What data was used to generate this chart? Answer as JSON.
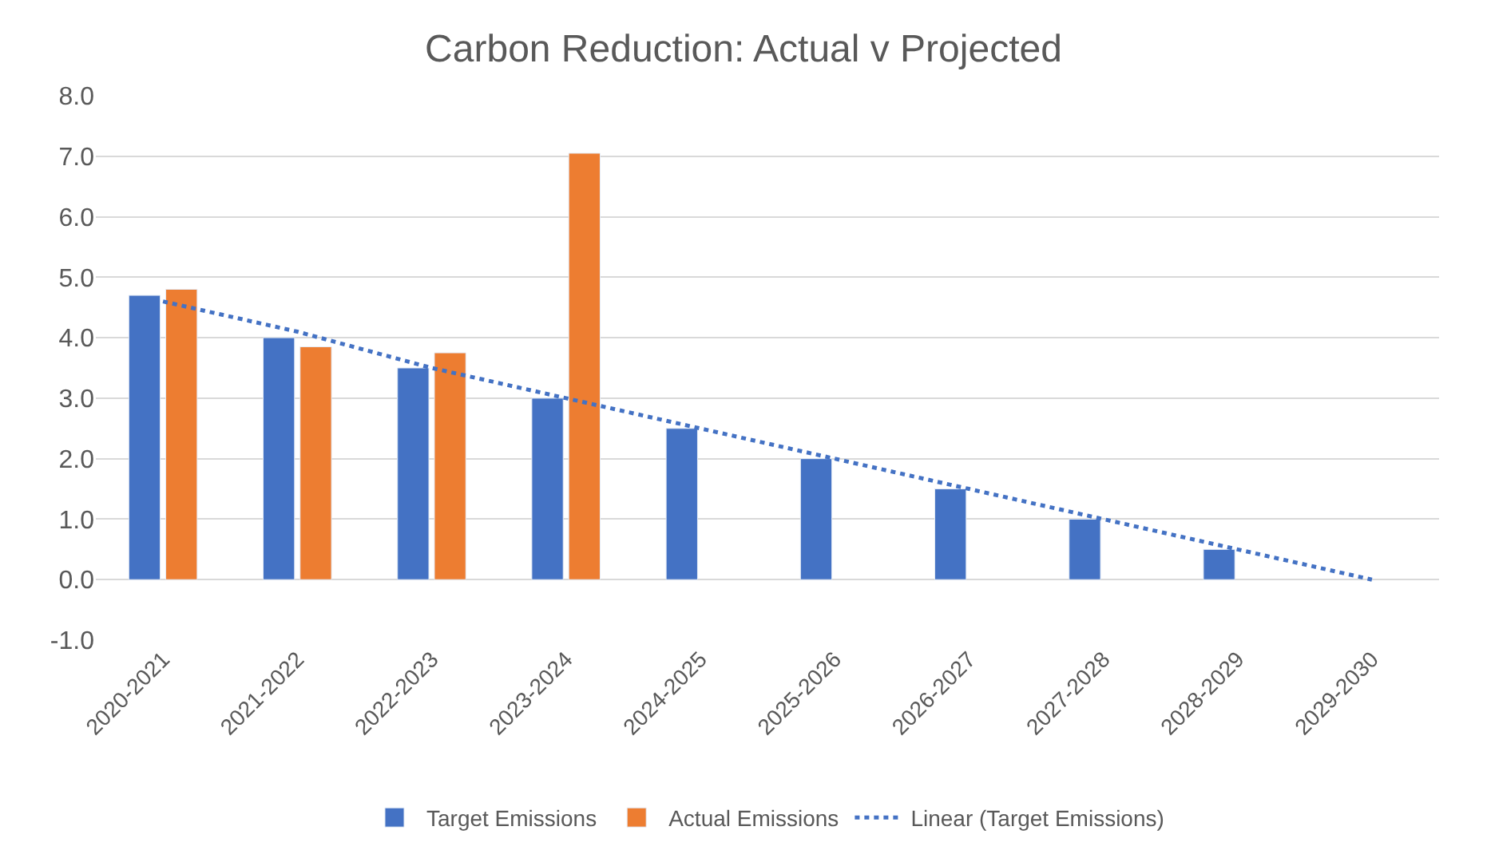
{
  "chart_data": {
    "type": "bar",
    "title": "Carbon Reduction: Actual v Projected",
    "categories": [
      "2020-2021",
      "2021-2022",
      "2022-2023",
      "2023-2024",
      "2024-2025",
      "2025-2026",
      "2026-2027",
      "2027-2028",
      "2028-2029",
      "2029-2030"
    ],
    "series": [
      {
        "name": "Target Emissions",
        "color": "#4472c4",
        "values": [
          4.7,
          4.0,
          3.5,
          3.0,
          2.5,
          2.0,
          1.5,
          1.0,
          0.5,
          null
        ]
      },
      {
        "name": "Actual Emissions",
        "color": "#ed7d31",
        "values": [
          4.8,
          3.85,
          3.75,
          7.05,
          null,
          null,
          null,
          null,
          null,
          null
        ]
      },
      {
        "name": "Linear (Target Emissions)",
        "color": "#4472c4",
        "type": "line",
        "line_style": "dotted",
        "values": [
          4.6,
          4.1,
          3.5,
          3.0,
          2.5,
          2.0,
          1.5,
          1.0,
          0.5,
          0.0
        ]
      }
    ],
    "ylim": [
      -1.0,
      8.0
    ],
    "yticks": [
      {
        "value": -1,
        "label": "-1.0"
      },
      {
        "value": 0,
        "label": "0.0"
      },
      {
        "value": 1,
        "label": "1.0"
      },
      {
        "value": 2,
        "label": "2.0"
      },
      {
        "value": 3,
        "label": "3.0"
      },
      {
        "value": 4,
        "label": "4.0"
      },
      {
        "value": 5,
        "label": "5.0"
      },
      {
        "value": 6,
        "label": "6.0"
      },
      {
        "value": 7,
        "label": "7.0"
      },
      {
        "value": 8,
        "label": "8.0"
      }
    ],
    "grid": "y",
    "legend": "bottom"
  }
}
